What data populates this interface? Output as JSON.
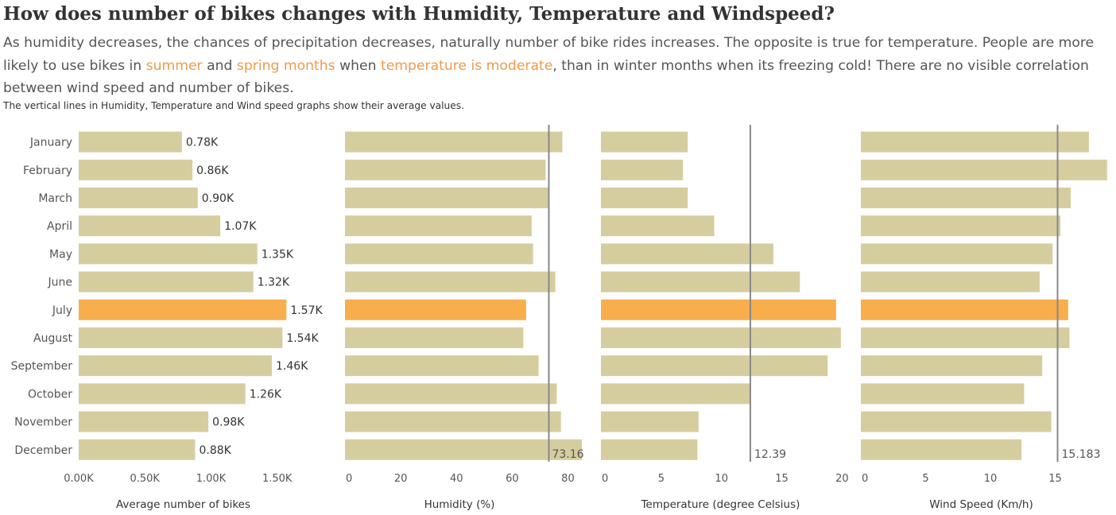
{
  "header": {
    "title": "How does number of bikes changes with Humidity, Temperature and Windspeed?",
    "desc_1": "As humidity decreases, the chances of precipitation decreases, naturally number of bike rides increases. The opposite is true for temperature. People are more likely to use bikes in ",
    "desc_hl_1": "summer",
    "desc_2": " and ",
    "desc_hl_2": "spring months",
    "desc_3": " when ",
    "desc_hl_3": "temperature is moderate",
    "desc_4": ", than in winter months when its freezing cold! There are no visible correlation between wind speed and number of bikes.",
    "note": "The vertical lines in Humidity, Temperature and Wind speed graphs show their average values."
  },
  "colors": {
    "bar": "#d6cd9f",
    "highlight": "#f8ae4c",
    "avg_line": "#888888",
    "text": "#555555",
    "accent_text": "#ef9a4c"
  },
  "chart_data": [
    {
      "type": "bar",
      "orientation": "horizontal",
      "xlabel": "Average number of bikes",
      "categories": [
        "January",
        "February",
        "March",
        "April",
        "May",
        "June",
        "July",
        "August",
        "September",
        "October",
        "November",
        "December"
      ],
      "values": [
        780,
        860,
        900,
        1070,
        1350,
        1320,
        1570,
        1540,
        1460,
        1260,
        980,
        880
      ],
      "data_labels": [
        "0.78K",
        "0.86K",
        "0.90K",
        "1.07K",
        "1.35K",
        "1.32K",
        "1.57K",
        "1.54K",
        "1.46K",
        "1.26K",
        "0.98K",
        "0.88K"
      ],
      "ticks": [
        0,
        500,
        1000,
        1500
      ],
      "tick_labels": [
        "0.00K",
        "0.50K",
        "1.00K",
        "1.50K"
      ],
      "xlim": [
        0,
        1580
      ],
      "highlight": "July"
    },
    {
      "type": "bar",
      "orientation": "horizontal",
      "xlabel": "Humidity (%)",
      "categories": [
        "January",
        "February",
        "March",
        "April",
        "May",
        "June",
        "July",
        "August",
        "September",
        "October",
        "November",
        "December"
      ],
      "values": [
        78,
        72,
        73,
        67,
        67.5,
        75.5,
        65,
        64,
        69.5,
        76,
        77.5,
        85
      ],
      "ticks": [
        0,
        20,
        40,
        60,
        80
      ],
      "tick_labels": [
        "0",
        "20",
        "40",
        "60",
        "80"
      ],
      "xlim": [
        -2,
        87
      ],
      "average": 73.16,
      "average_label": "73.16",
      "highlight": "July"
    },
    {
      "type": "bar",
      "orientation": "horizontal",
      "xlabel": "Temperature (degree Celsius)",
      "categories": [
        "January",
        "February",
        "March",
        "April",
        "May",
        "June",
        "July",
        "August",
        "September",
        "October",
        "November",
        "December"
      ],
      "values": [
        7.2,
        6.8,
        7.2,
        9.4,
        14.3,
        16.5,
        19.5,
        19.9,
        18.8,
        12.4,
        8.1,
        8.0
      ],
      "ticks": [
        0,
        5,
        10,
        15,
        20
      ],
      "tick_labels": [
        "0",
        "5",
        "10",
        "15",
        "20"
      ],
      "xlim": [
        0,
        20.5
      ],
      "average": 12.39,
      "average_label": "12.39",
      "highlight": "July"
    },
    {
      "type": "bar",
      "orientation": "horizontal",
      "xlabel": "Wind Speed (Km/h)",
      "categories": [
        "January",
        "February",
        "March",
        "April",
        "May",
        "June",
        "July",
        "August",
        "September",
        "October",
        "November",
        "December"
      ],
      "values": [
        17.6,
        19.0,
        16.2,
        15.4,
        14.8,
        13.8,
        16.0,
        16.1,
        14.0,
        12.6,
        14.7,
        12.4
      ],
      "ticks": [
        0,
        5,
        10,
        15
      ],
      "tick_labels": [
        "0",
        "5",
        "10",
        "15"
      ],
      "xlim": [
        0,
        19.2
      ],
      "average": 15.183,
      "average_label": "15.183",
      "highlight": "July"
    }
  ]
}
